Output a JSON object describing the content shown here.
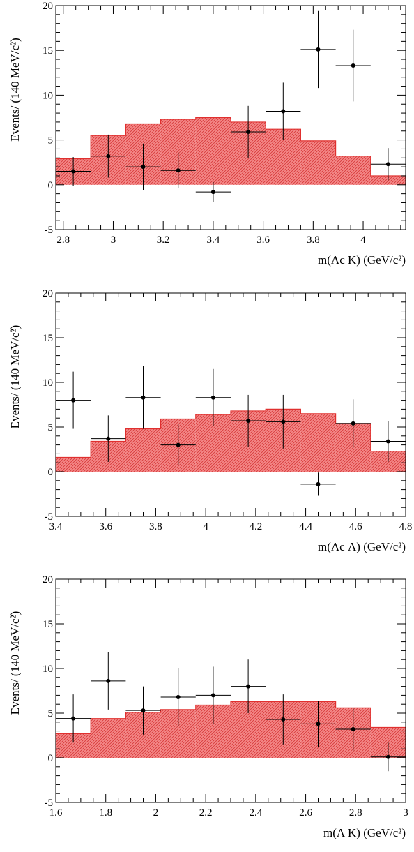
{
  "style": {
    "fill_color": "#f26b6b",
    "hatch_color": "#d94040",
    "edge_color": "#e0302f",
    "point_color": "#000000",
    "frame_color": "#000000"
  },
  "chart_data": [
    {
      "type": "bar",
      "ylabel": "Events/ (140 MeV/c²)",
      "xlabel": "m(Λc K) (GeV/c²)",
      "xlim": [
        2.77,
        4.17
      ],
      "ylim": [
        -5,
        20
      ],
      "xticks": [
        "2.8",
        "3",
        "3.2",
        "3.4",
        "3.6",
        "3.8",
        "4"
      ],
      "yticks": [
        "-5",
        "0",
        "5",
        "10",
        "15",
        "20"
      ],
      "bin_edges": [
        2.77,
        2.91,
        3.05,
        3.19,
        3.33,
        3.47,
        3.61,
        3.75,
        3.89,
        4.03,
        4.17
      ],
      "hist_values": [
        2.9,
        5.5,
        6.8,
        7.3,
        7.5,
        7.0,
        6.2,
        4.9,
        3.2,
        1.0
      ],
      "points": [
        {
          "x": 2.84,
          "y": 1.5,
          "err": 1.6
        },
        {
          "x": 2.98,
          "y": 3.2,
          "err": 2.4
        },
        {
          "x": 3.12,
          "y": 2.0,
          "err": 2.6
        },
        {
          "x": 3.26,
          "y": 1.6,
          "err": 2.0
        },
        {
          "x": 3.4,
          "y": -0.8,
          "err": 1.1
        },
        {
          "x": 3.54,
          "y": 5.9,
          "err": 2.9
        },
        {
          "x": 3.68,
          "y": 8.2,
          "err": 3.2
        },
        {
          "x": 3.82,
          "y": 15.1,
          "err": 4.3
        },
        {
          "x": 3.96,
          "y": 13.3,
          "err": 4.0
        },
        {
          "x": 4.1,
          "y": 2.3,
          "err": 1.8
        }
      ]
    },
    {
      "type": "bar",
      "ylabel": "Events/ (140 MeV/c²)",
      "xlabel": "m(Λc Λ) (GeV/c²)",
      "xlim": [
        3.4,
        4.8
      ],
      "ylim": [
        -5,
        20
      ],
      "xticks": [
        "3.4",
        "3.6",
        "3.8",
        "4",
        "4.2",
        "4.4",
        "4.6",
        "4.8"
      ],
      "yticks": [
        "-5",
        "0",
        "5",
        "10",
        "15",
        "20"
      ],
      "bin_edges": [
        3.4,
        3.54,
        3.68,
        3.82,
        3.96,
        4.1,
        4.24,
        4.38,
        4.52,
        4.66,
        4.8
      ],
      "hist_values": [
        1.6,
        3.4,
        4.8,
        5.9,
        6.4,
        6.8,
        7.0,
        6.5,
        5.4,
        2.3
      ],
      "points": [
        {
          "x": 3.47,
          "y": 8.0,
          "err": 3.2
        },
        {
          "x": 3.61,
          "y": 3.7,
          "err": 2.6
        },
        {
          "x": 3.75,
          "y": 8.3,
          "err": 3.5
        },
        {
          "x": 3.89,
          "y": 3.0,
          "err": 2.3
        },
        {
          "x": 4.03,
          "y": 8.3,
          "err": 3.2
        },
        {
          "x": 4.17,
          "y": 5.7,
          "err": 2.9
        },
        {
          "x": 4.31,
          "y": 5.6,
          "err": 3.0
        },
        {
          "x": 4.45,
          "y": -1.4,
          "err": 1.3
        },
        {
          "x": 4.59,
          "y": 5.4,
          "err": 2.7
        },
        {
          "x": 4.73,
          "y": 3.4,
          "err": 2.3
        }
      ]
    },
    {
      "type": "bar",
      "ylabel": "Events/ (140 MeV/c²)",
      "xlabel": "m(Λ K) (GeV/c²)",
      "xlim": [
        1.6,
        3.0
      ],
      "ylim": [
        -5,
        20
      ],
      "xticks": [
        "1.6",
        "1.8",
        "2",
        "2.2",
        "2.4",
        "2.6",
        "2.8",
        "3"
      ],
      "yticks": [
        "-5",
        "0",
        "5",
        "10",
        "15",
        "20"
      ],
      "bin_edges": [
        1.6,
        1.74,
        1.88,
        2.02,
        2.16,
        2.3,
        2.44,
        2.58,
        2.72,
        2.86,
        3.0
      ],
      "hist_values": [
        2.7,
        4.4,
        5.1,
        5.4,
        5.9,
        6.3,
        6.3,
        6.3,
        5.6,
        3.4
      ],
      "points": [
        {
          "x": 1.67,
          "y": 4.4,
          "err": 2.7
        },
        {
          "x": 1.81,
          "y": 8.6,
          "err": 3.2
        },
        {
          "x": 1.95,
          "y": 5.3,
          "err": 2.7
        },
        {
          "x": 2.09,
          "y": 6.8,
          "err": 3.2
        },
        {
          "x": 2.23,
          "y": 7.0,
          "err": 3.2
        },
        {
          "x": 2.37,
          "y": 8.0,
          "err": 3.0
        },
        {
          "x": 2.51,
          "y": 4.3,
          "err": 2.8
        },
        {
          "x": 2.65,
          "y": 3.8,
          "err": 2.6
        },
        {
          "x": 2.79,
          "y": 3.2,
          "err": 2.4
        },
        {
          "x": 2.93,
          "y": 0.1,
          "err": 1.6
        }
      ]
    }
  ]
}
